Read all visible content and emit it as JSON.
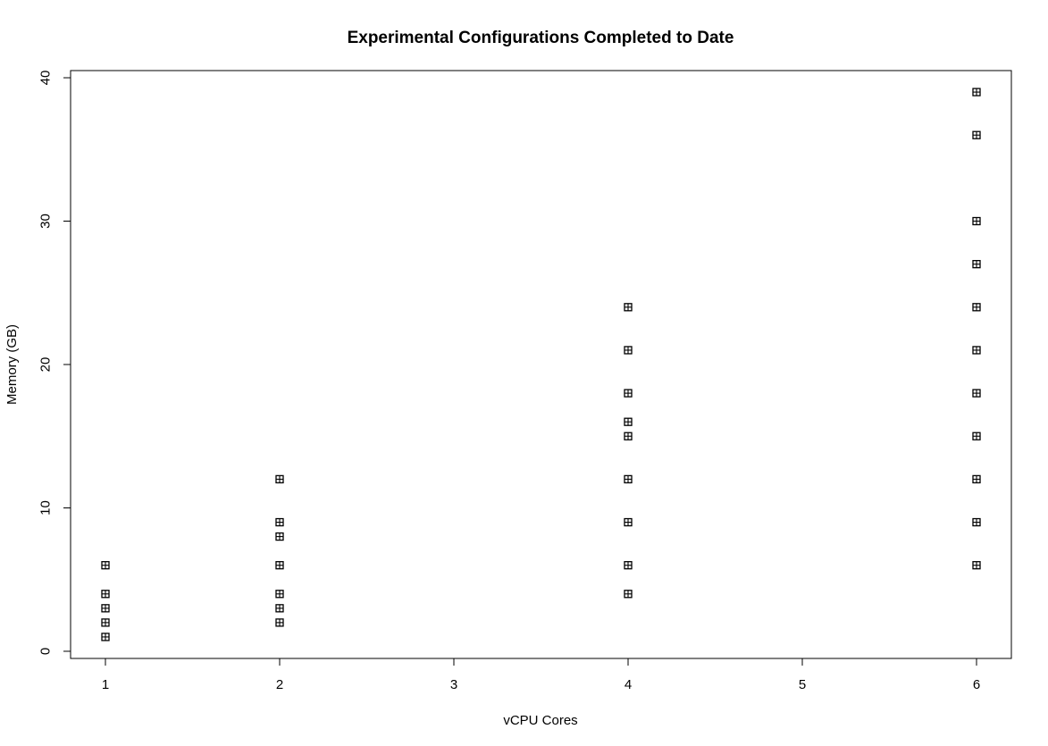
{
  "chart_data": {
    "type": "scatter",
    "title": "Experimental Configurations Completed to Date",
    "xlabel": "vCPU Cores",
    "ylabel": "Memory (GB)",
    "xlim": [
      0.8,
      6.2
    ],
    "ylim": [
      -0.5,
      40.5
    ],
    "xticks": [
      1,
      2,
      3,
      4,
      5,
      6
    ],
    "yticks": [
      0,
      10,
      20,
      30,
      40
    ],
    "grid": false,
    "legend": "none",
    "marker": "boxed-plus",
    "color": "#000000",
    "points": [
      {
        "x": 1,
        "y": 1
      },
      {
        "x": 1,
        "y": 2
      },
      {
        "x": 1,
        "y": 3
      },
      {
        "x": 1,
        "y": 4
      },
      {
        "x": 1,
        "y": 6
      },
      {
        "x": 2,
        "y": 2
      },
      {
        "x": 2,
        "y": 3
      },
      {
        "x": 2,
        "y": 4
      },
      {
        "x": 2,
        "y": 6
      },
      {
        "x": 2,
        "y": 8
      },
      {
        "x": 2,
        "y": 9
      },
      {
        "x": 2,
        "y": 12
      },
      {
        "x": 4,
        "y": 4
      },
      {
        "x": 4,
        "y": 6
      },
      {
        "x": 4,
        "y": 9
      },
      {
        "x": 4,
        "y": 12
      },
      {
        "x": 4,
        "y": 15
      },
      {
        "x": 4,
        "y": 16
      },
      {
        "x": 4,
        "y": 18
      },
      {
        "x": 4,
        "y": 21
      },
      {
        "x": 4,
        "y": 24
      },
      {
        "x": 6,
        "y": 6
      },
      {
        "x": 6,
        "y": 9
      },
      {
        "x": 6,
        "y": 12
      },
      {
        "x": 6,
        "y": 15
      },
      {
        "x": 6,
        "y": 18
      },
      {
        "x": 6,
        "y": 21
      },
      {
        "x": 6,
        "y": 24
      },
      {
        "x": 6,
        "y": 27
      },
      {
        "x": 6,
        "y": 30
      },
      {
        "x": 6,
        "y": 36
      },
      {
        "x": 6,
        "y": 39
      }
    ]
  }
}
